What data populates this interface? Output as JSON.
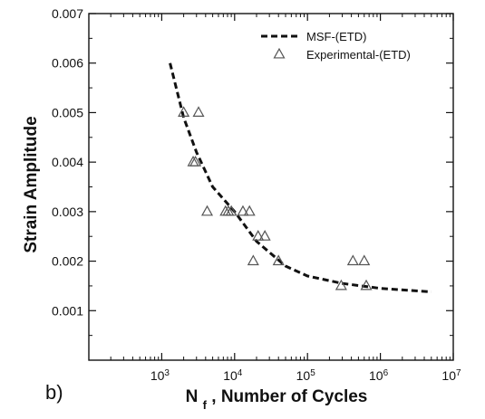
{
  "panel_label": "b)",
  "chart_data": {
    "type": "scatter",
    "title": "",
    "xlabel": {
      "main": "N",
      "subscript": "f",
      "suffix": ", Number of Cycles"
    },
    "ylabel": "Strain Amplitude",
    "x_scale": "log",
    "x_range": [
      100,
      10000000
    ],
    "y_range": [
      0.0,
      0.007
    ],
    "x_ticks": [
      {
        "value": 1000,
        "base": "10",
        "exp": "3"
      },
      {
        "value": 10000,
        "base": "10",
        "exp": "4"
      },
      {
        "value": 100000,
        "base": "10",
        "exp": "5"
      },
      {
        "value": 1000000,
        "base": "10",
        "exp": "6"
      },
      {
        "value": 10000000,
        "base": "10",
        "exp": "7"
      }
    ],
    "y_ticks": [
      {
        "value": 0.001,
        "label": "0.001"
      },
      {
        "value": 0.002,
        "label": "0.002"
      },
      {
        "value": 0.003,
        "label": "0.003"
      },
      {
        "value": 0.004,
        "label": "0.004"
      },
      {
        "value": 0.005,
        "label": "0.005"
      },
      {
        "value": 0.006,
        "label": "0.006"
      },
      {
        "value": 0.007,
        "label": "0.007"
      }
    ],
    "grid": false,
    "legend_position": "top-right",
    "series": [
      {
        "name": "MSF-(ETD)",
        "kind": "line",
        "style": "dashed",
        "color": "#111111",
        "points": [
          {
            "x": 1300,
            "y": 0.006
          },
          {
            "x": 2000,
            "y": 0.0049
          },
          {
            "x": 3000,
            "y": 0.0042
          },
          {
            "x": 5000,
            "y": 0.0035
          },
          {
            "x": 10000,
            "y": 0.003
          },
          {
            "x": 20000,
            "y": 0.0024
          },
          {
            "x": 50000,
            "y": 0.0019
          },
          {
            "x": 100000,
            "y": 0.0017
          },
          {
            "x": 300000,
            "y": 0.00155
          },
          {
            "x": 1000000,
            "y": 0.00145
          },
          {
            "x": 5000000,
            "y": 0.00138
          }
        ]
      },
      {
        "name": "Experimental-(ETD)",
        "kind": "scatter",
        "marker": "triangle-open",
        "color": "#555555",
        "points": [
          {
            "x": 2000,
            "y": 0.005
          },
          {
            "x": 3200,
            "y": 0.005
          },
          {
            "x": 2700,
            "y": 0.004
          },
          {
            "x": 2900,
            "y": 0.004
          },
          {
            "x": 4200,
            "y": 0.003
          },
          {
            "x": 7500,
            "y": 0.003
          },
          {
            "x": 8200,
            "y": 0.003
          },
          {
            "x": 9000,
            "y": 0.003
          },
          {
            "x": 13000,
            "y": 0.003
          },
          {
            "x": 16000,
            "y": 0.003
          },
          {
            "x": 21000,
            "y": 0.0025
          },
          {
            "x": 26000,
            "y": 0.0025
          },
          {
            "x": 18000,
            "y": 0.002
          },
          {
            "x": 40000,
            "y": 0.002
          },
          {
            "x": 420000,
            "y": 0.002
          },
          {
            "x": 600000,
            "y": 0.002
          },
          {
            "x": 290000,
            "y": 0.0015
          },
          {
            "x": 640000,
            "y": 0.0015
          }
        ]
      }
    ]
  }
}
